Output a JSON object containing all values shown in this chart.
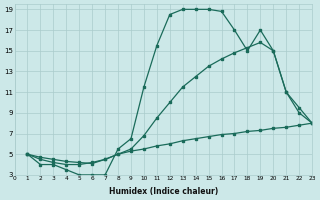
{
  "xlabel": "Humidex (Indice chaleur)",
  "bg_color": "#cce8e8",
  "grid_color": "#aacccc",
  "line_color": "#1a6b5a",
  "xlim": [
    0,
    23
  ],
  "ylim": [
    3,
    19.5
  ],
  "xticks": [
    0,
    1,
    2,
    3,
    4,
    5,
    6,
    7,
    8,
    9,
    10,
    11,
    12,
    13,
    14,
    15,
    16,
    17,
    18,
    19,
    20,
    21,
    22,
    23
  ],
  "yticks": [
    3,
    5,
    7,
    9,
    11,
    13,
    15,
    17,
    19
  ],
  "curve1_x": [
    1,
    2,
    3,
    4,
    5,
    6,
    7,
    8,
    9,
    10,
    11,
    12,
    13,
    14,
    15,
    16,
    17,
    18,
    19,
    20,
    21,
    22,
    23
  ],
  "curve1_y": [
    5,
    4,
    4,
    3.5,
    3,
    3,
    3,
    5.5,
    6.5,
    11.5,
    15.5,
    18.5,
    19,
    19,
    19,
    18.8,
    17,
    15,
    17,
    15,
    11,
    9,
    8
  ],
  "curve2_x": [
    1,
    2,
    3,
    4,
    5,
    6,
    7,
    8,
    9,
    10,
    11,
    12,
    13,
    14,
    15,
    16,
    17,
    18,
    19,
    20,
    21,
    22,
    23
  ],
  "curve2_y": [
    5,
    4.5,
    4.2,
    4.0,
    4.0,
    4.2,
    4.5,
    5.0,
    5.5,
    6.8,
    8.5,
    10,
    11.5,
    12.5,
    13.5,
    14.2,
    14.8,
    15.3,
    15.8,
    15,
    11,
    9.5,
    8
  ],
  "curve3_x": [
    1,
    2,
    3,
    4,
    5,
    6,
    7,
    8,
    9,
    10,
    11,
    12,
    13,
    14,
    15,
    16,
    17,
    18,
    19,
    20,
    21,
    22,
    23
  ],
  "curve3_y": [
    5,
    4.7,
    4.5,
    4.3,
    4.2,
    4.1,
    4.5,
    5.0,
    5.3,
    5.5,
    5.8,
    6.0,
    6.3,
    6.5,
    6.7,
    6.9,
    7.0,
    7.2,
    7.3,
    7.5,
    7.6,
    7.8,
    8.0
  ]
}
